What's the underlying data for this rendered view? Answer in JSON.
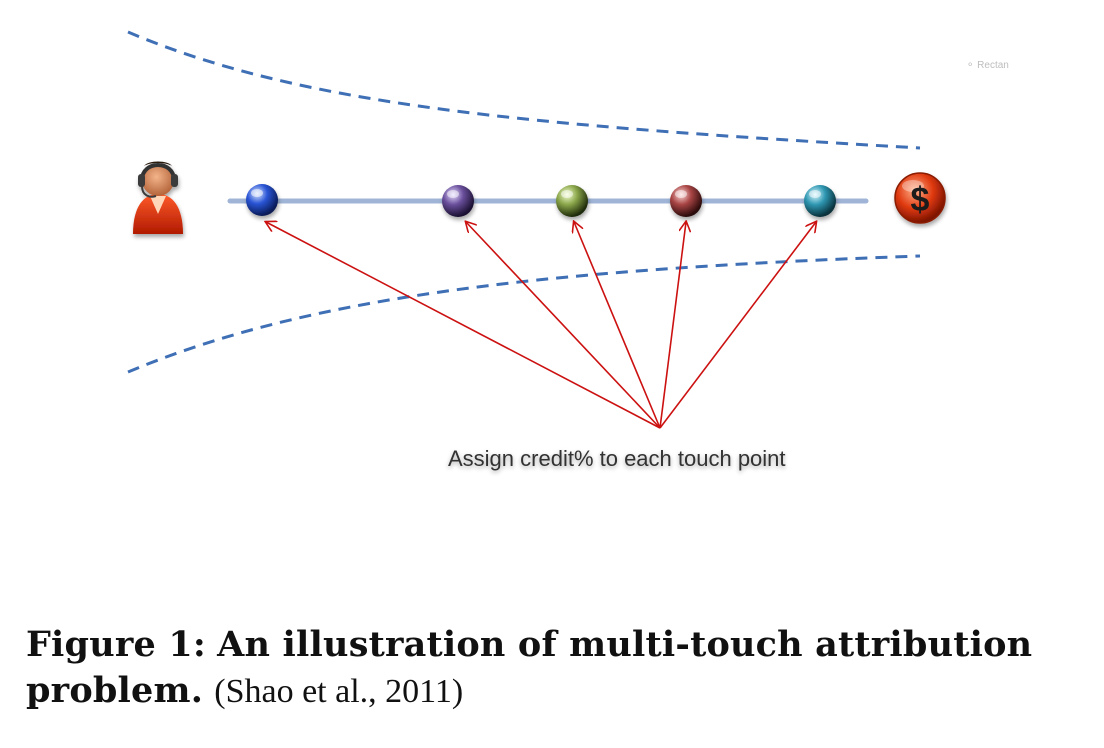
{
  "diagram": {
    "callout_text": "Assign credit% to each touch point",
    "faint_label": "Rectan",
    "touch_points": [
      {
        "color": "#2a55d6"
      },
      {
        "color": "#6a4f9c"
      },
      {
        "color": "#8aa64a"
      },
      {
        "color": "#a84444"
      },
      {
        "color": "#2f97b2"
      }
    ],
    "colors": {
      "arrow": "#cc1111",
      "funnel": "#3f6fb5",
      "journey_line": "#9fb4d6",
      "conversion": "#dd3311"
    },
    "icons": {
      "customer": "user-headset-icon",
      "conversion": "dollar-icon"
    }
  },
  "caption": {
    "label": "Figure 1:",
    "title_part1": "An illustration of multi-touch attribution",
    "title_part2": "problem.",
    "citation": "(Shao et al., 2011)"
  }
}
